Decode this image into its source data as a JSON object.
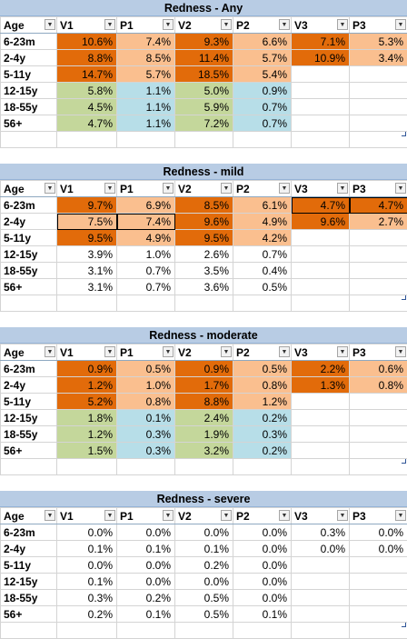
{
  "headers": [
    "Age",
    "V1",
    "P1",
    "V2",
    "P2",
    "V3",
    "P3"
  ],
  "sections": [
    {
      "title": "Redness - Any",
      "rows": [
        {
          "age": "6-23m",
          "cells": [
            {
              "v": "10.6%",
              "c": "dark"
            },
            {
              "v": "7.4%",
              "c": "light"
            },
            {
              "v": "9.3%",
              "c": "dark"
            },
            {
              "v": "6.6%",
              "c": "light"
            },
            {
              "v": "7.1%",
              "c": "dark"
            },
            {
              "v": "5.3%",
              "c": "light"
            }
          ]
        },
        {
          "age": "2-4y",
          "cells": [
            {
              "v": "8.8%",
              "c": "dark"
            },
            {
              "v": "8.5%",
              "c": "light"
            },
            {
              "v": "11.4%",
              "c": "dark"
            },
            {
              "v": "5.7%",
              "c": "light"
            },
            {
              "v": "10.9%",
              "c": "dark"
            },
            {
              "v": "3.4%",
              "c": "light"
            }
          ]
        },
        {
          "age": "5-11y",
          "cells": [
            {
              "v": "14.7%",
              "c": "dark"
            },
            {
              "v": "5.7%",
              "c": "light"
            },
            {
              "v": "18.5%",
              "c": "dark"
            },
            {
              "v": "5.4%",
              "c": "light"
            },
            {
              "v": "",
              "c": ""
            },
            {
              "v": "",
              "c": ""
            }
          ]
        },
        {
          "age": "12-15y",
          "cells": [
            {
              "v": "5.8%",
              "c": "green"
            },
            {
              "v": "1.1%",
              "c": "blue"
            },
            {
              "v": "5.0%",
              "c": "green"
            },
            {
              "v": "0.9%",
              "c": "blue"
            },
            {
              "v": "",
              "c": ""
            },
            {
              "v": "",
              "c": ""
            }
          ]
        },
        {
          "age": "18-55y",
          "cells": [
            {
              "v": "4.5%",
              "c": "green"
            },
            {
              "v": "1.1%",
              "c": "blue"
            },
            {
              "v": "5.9%",
              "c": "green"
            },
            {
              "v": "0.7%",
              "c": "blue"
            },
            {
              "v": "",
              "c": ""
            },
            {
              "v": "",
              "c": ""
            }
          ]
        },
        {
          "age": "56+",
          "cells": [
            {
              "v": "4.7%",
              "c": "green"
            },
            {
              "v": "1.1%",
              "c": "blue"
            },
            {
              "v": "7.2%",
              "c": "green"
            },
            {
              "v": "0.7%",
              "c": "blue"
            },
            {
              "v": "",
              "c": ""
            },
            {
              "v": "",
              "c": ""
            }
          ]
        }
      ]
    },
    {
      "title": "Redness - mild",
      "rows": [
        {
          "age": "6-23m",
          "cells": [
            {
              "v": "9.7%",
              "c": "dark"
            },
            {
              "v": "6.9%",
              "c": "light"
            },
            {
              "v": "8.5%",
              "c": "dark"
            },
            {
              "v": "6.1%",
              "c": "light"
            },
            {
              "v": "4.7%",
              "c": "dark boxed"
            },
            {
              "v": "4.7%",
              "c": "dark boxed"
            }
          ]
        },
        {
          "age": "2-4y",
          "cells": [
            {
              "v": "7.5%",
              "c": "light boxed"
            },
            {
              "v": "7.4%",
              "c": "light boxed"
            },
            {
              "v": "9.6%",
              "c": "dark"
            },
            {
              "v": "4.9%",
              "c": "light"
            },
            {
              "v": "9.6%",
              "c": "dark"
            },
            {
              "v": "2.7%",
              "c": "light"
            }
          ]
        },
        {
          "age": "5-11y",
          "cells": [
            {
              "v": "9.5%",
              "c": "dark"
            },
            {
              "v": "4.9%",
              "c": "light"
            },
            {
              "v": "9.5%",
              "c": "dark"
            },
            {
              "v": "4.2%",
              "c": "light"
            },
            {
              "v": "",
              "c": ""
            },
            {
              "v": "",
              "c": ""
            }
          ]
        },
        {
          "age": "12-15y",
          "cells": [
            {
              "v": "3.9%",
              "c": ""
            },
            {
              "v": "1.0%",
              "c": ""
            },
            {
              "v": "2.6%",
              "c": ""
            },
            {
              "v": "0.7%",
              "c": ""
            },
            {
              "v": "",
              "c": ""
            },
            {
              "v": "",
              "c": ""
            }
          ]
        },
        {
          "age": "18-55y",
          "cells": [
            {
              "v": "3.1%",
              "c": ""
            },
            {
              "v": "0.7%",
              "c": ""
            },
            {
              "v": "3.5%",
              "c": ""
            },
            {
              "v": "0.4%",
              "c": ""
            },
            {
              "v": "",
              "c": ""
            },
            {
              "v": "",
              "c": ""
            }
          ]
        },
        {
          "age": "56+",
          "cells": [
            {
              "v": "3.1%",
              "c": ""
            },
            {
              "v": "0.7%",
              "c": ""
            },
            {
              "v": "3.6%",
              "c": ""
            },
            {
              "v": "0.5%",
              "c": ""
            },
            {
              "v": "",
              "c": ""
            },
            {
              "v": "",
              "c": ""
            }
          ]
        }
      ]
    },
    {
      "title": "Redness - moderate",
      "rows": [
        {
          "age": "6-23m",
          "cells": [
            {
              "v": "0.9%",
              "c": "dark"
            },
            {
              "v": "0.5%",
              "c": "light"
            },
            {
              "v": "0.9%",
              "c": "dark"
            },
            {
              "v": "0.5%",
              "c": "light"
            },
            {
              "v": "2.2%",
              "c": "dark"
            },
            {
              "v": "0.6%",
              "c": "light"
            }
          ]
        },
        {
          "age": "2-4y",
          "cells": [
            {
              "v": "1.2%",
              "c": "dark"
            },
            {
              "v": "1.0%",
              "c": "light"
            },
            {
              "v": "1.7%",
              "c": "dark"
            },
            {
              "v": "0.8%",
              "c": "light"
            },
            {
              "v": "1.3%",
              "c": "dark"
            },
            {
              "v": "0.8%",
              "c": "light"
            }
          ]
        },
        {
          "age": "5-11y",
          "cells": [
            {
              "v": "5.2%",
              "c": "dark"
            },
            {
              "v": "0.8%",
              "c": "light"
            },
            {
              "v": "8.8%",
              "c": "dark"
            },
            {
              "v": "1.2%",
              "c": "light"
            },
            {
              "v": "",
              "c": ""
            },
            {
              "v": "",
              "c": ""
            }
          ]
        },
        {
          "age": "12-15y",
          "cells": [
            {
              "v": "1.8%",
              "c": "green"
            },
            {
              "v": "0.1%",
              "c": "blue"
            },
            {
              "v": "2.4%",
              "c": "green"
            },
            {
              "v": "0.2%",
              "c": "blue"
            },
            {
              "v": "",
              "c": ""
            },
            {
              "v": "",
              "c": ""
            }
          ]
        },
        {
          "age": "18-55y",
          "cells": [
            {
              "v": "1.2%",
              "c": "green"
            },
            {
              "v": "0.3%",
              "c": "blue"
            },
            {
              "v": "1.9%",
              "c": "green"
            },
            {
              "v": "0.3%",
              "c": "blue"
            },
            {
              "v": "",
              "c": ""
            },
            {
              "v": "",
              "c": ""
            }
          ]
        },
        {
          "age": "56+",
          "cells": [
            {
              "v": "1.5%",
              "c": "green"
            },
            {
              "v": "0.3%",
              "c": "blue"
            },
            {
              "v": "3.2%",
              "c": "green"
            },
            {
              "v": "0.2%",
              "c": "blue"
            },
            {
              "v": "",
              "c": ""
            },
            {
              "v": "",
              "c": ""
            }
          ]
        }
      ]
    },
    {
      "title": "Redness - severe",
      "rows": [
        {
          "age": "6-23m",
          "cells": [
            {
              "v": "0.0%",
              "c": ""
            },
            {
              "v": "0.0%",
              "c": ""
            },
            {
              "v": "0.0%",
              "c": ""
            },
            {
              "v": "0.0%",
              "c": ""
            },
            {
              "v": "0.3%",
              "c": ""
            },
            {
              "v": "0.0%",
              "c": ""
            }
          ]
        },
        {
          "age": "2-4y",
          "cells": [
            {
              "v": "0.1%",
              "c": ""
            },
            {
              "v": "0.1%",
              "c": ""
            },
            {
              "v": "0.1%",
              "c": ""
            },
            {
              "v": "0.0%",
              "c": ""
            },
            {
              "v": "0.0%",
              "c": ""
            },
            {
              "v": "0.0%",
              "c": ""
            }
          ]
        },
        {
          "age": "5-11y",
          "cells": [
            {
              "v": "0.0%",
              "c": ""
            },
            {
              "v": "0.0%",
              "c": ""
            },
            {
              "v": "0.2%",
              "c": ""
            },
            {
              "v": "0.0%",
              "c": ""
            },
            {
              "v": "",
              "c": ""
            },
            {
              "v": "",
              "c": ""
            }
          ]
        },
        {
          "age": "12-15y",
          "cells": [
            {
              "v": "0.1%",
              "c": ""
            },
            {
              "v": "0.0%",
              "c": ""
            },
            {
              "v": "0.0%",
              "c": ""
            },
            {
              "v": "0.0%",
              "c": ""
            },
            {
              "v": "",
              "c": ""
            },
            {
              "v": "",
              "c": ""
            }
          ]
        },
        {
          "age": "18-55y",
          "cells": [
            {
              "v": "0.3%",
              "c": ""
            },
            {
              "v": "0.2%",
              "c": ""
            },
            {
              "v": "0.5%",
              "c": ""
            },
            {
              "v": "0.0%",
              "c": ""
            },
            {
              "v": "",
              "c": ""
            },
            {
              "v": "",
              "c": ""
            }
          ]
        },
        {
          "age": "56+",
          "cells": [
            {
              "v": "0.2%",
              "c": ""
            },
            {
              "v": "0.1%",
              "c": ""
            },
            {
              "v": "0.5%",
              "c": ""
            },
            {
              "v": "0.1%",
              "c": ""
            },
            {
              "v": "",
              "c": ""
            },
            {
              "v": "",
              "c": ""
            }
          ]
        }
      ]
    }
  ],
  "dropdown_icon": "chevron-down-icon",
  "colors": {
    "dark_orange": "#e26b0a",
    "light_orange": "#fabf8f",
    "green": "#c4d79b",
    "blue": "#b7dee8",
    "title_bg": "#b8cce4"
  }
}
